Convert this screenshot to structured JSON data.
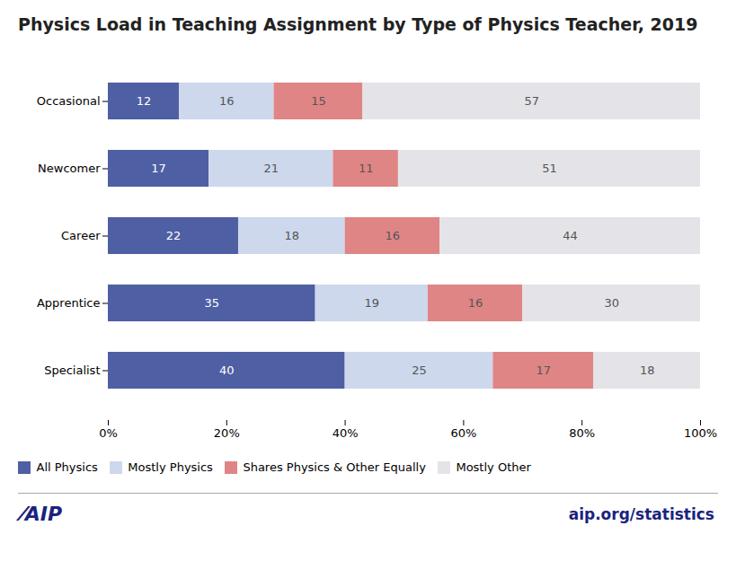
{
  "chart_data": {
    "type": "bar",
    "orientation": "horizontal",
    "stacked": true,
    "title": "Physics Load in Teaching Assignment by Type of Physics Teacher, 2019",
    "categories": [
      "Occasional",
      "Newcomer",
      "Career",
      "Apprentice",
      "Specialist"
    ],
    "series": [
      {
        "name": "All Physics",
        "color": "#4f5fa3",
        "values": [
          12,
          17,
          22,
          35,
          40
        ]
      },
      {
        "name": "Mostly Physics",
        "color": "#cdd8ed",
        "values": [
          16,
          21,
          18,
          19,
          25
        ]
      },
      {
        "name": "Shares Physics & Other Equally",
        "color": "#e08585",
        "values": [
          15,
          11,
          16,
          16,
          17
        ]
      },
      {
        "name": "Mostly Other",
        "color": "#e4e4e8",
        "values": [
          57,
          51,
          44,
          30,
          18
        ]
      }
    ],
    "xlim": [
      0,
      100
    ],
    "xticks": [
      {
        "value": 0,
        "label": "0%"
      },
      {
        "value": 20,
        "label": "20%"
      },
      {
        "value": 40,
        "label": "40%"
      },
      {
        "value": 60,
        "label": "60%"
      },
      {
        "value": 80,
        "label": "80%"
      },
      {
        "value": 100,
        "label": "100%"
      }
    ],
    "grid": false,
    "legend": "bottom",
    "data_labels": true,
    "annotations": [
      "⁄AIP",
      "aip.org/statistics"
    ]
  }
}
